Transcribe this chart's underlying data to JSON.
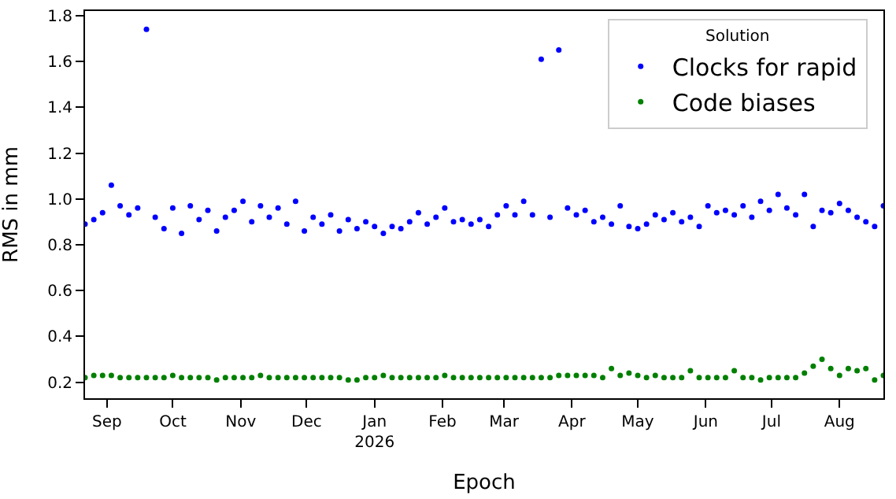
{
  "chart_data": {
    "type": "scatter",
    "xlabel": "Epoch",
    "ylabel": "RMS in mm",
    "legend_title": "Solution",
    "legend": "top right",
    "grid": false,
    "marker": "circle",
    "xlim": [
      "2025-08-22",
      "2026-08-21"
    ],
    "ylim": [
      0.13,
      1.82
    ],
    "xticks": [
      {
        "value": "2025-09-01",
        "label": "Sep"
      },
      {
        "value": "2025-10-01",
        "label": "Oct"
      },
      {
        "value": "2025-11-01",
        "label": "Nov"
      },
      {
        "value": "2025-12-01",
        "label": "Dec"
      },
      {
        "value": "2026-01-01",
        "label": "Jan\n2026"
      },
      {
        "value": "2026-02-01",
        "label": "Feb"
      },
      {
        "value": "2026-03-01",
        "label": "Mar"
      },
      {
        "value": "2026-04-01",
        "label": "Apr"
      },
      {
        "value": "2026-05-01",
        "label": "May"
      },
      {
        "value": "2026-06-01",
        "label": "Jun"
      },
      {
        "value": "2026-07-01",
        "label": "Jul"
      },
      {
        "value": "2026-08-01",
        "label": "Aug"
      }
    ],
    "yticks": [
      0.2,
      0.4,
      0.6,
      0.8,
      {
        "value": 1,
        "label": "1.0"
      },
      1.2,
      1.4,
      1.6,
      1.8
    ],
    "x": [
      "2025-08-22",
      "2025-08-26",
      "2025-08-30",
      "2025-09-03",
      "2025-09-07",
      "2025-09-11",
      "2025-09-15",
      "2025-09-19",
      "2025-09-23",
      "2025-09-27",
      "2025-10-01",
      "2025-10-05",
      "2025-10-09",
      "2025-10-13",
      "2025-10-17",
      "2025-10-21",
      "2025-10-25",
      "2025-10-29",
      "2025-11-02",
      "2025-11-06",
      "2025-11-10",
      "2025-11-14",
      "2025-11-18",
      "2025-11-22",
      "2025-11-26",
      "2025-11-30",
      "2025-12-04",
      "2025-12-08",
      "2025-12-12",
      "2025-12-16",
      "2025-12-20",
      "2025-12-24",
      "2025-12-28",
      "2026-01-01",
      "2026-01-05",
      "2026-01-09",
      "2026-01-13",
      "2026-01-17",
      "2026-01-21",
      "2026-01-25",
      "2026-01-29",
      "2026-02-02",
      "2026-02-06",
      "2026-02-10",
      "2026-02-14",
      "2026-02-18",
      "2026-02-22",
      "2026-02-26",
      "2026-03-02",
      "2026-03-06",
      "2026-03-10",
      "2026-03-14",
      "2026-03-18",
      "2026-03-22",
      "2026-03-26",
      "2026-03-30",
      "2026-04-03",
      "2026-04-07",
      "2026-04-11",
      "2026-04-15",
      "2026-04-19",
      "2026-04-23",
      "2026-04-27",
      "2026-05-01",
      "2026-05-05",
      "2026-05-09",
      "2026-05-13",
      "2026-05-17",
      "2026-05-21",
      "2026-05-25",
      "2026-05-29",
      "2026-06-02",
      "2026-06-06",
      "2026-06-10",
      "2026-06-14",
      "2026-06-18",
      "2026-06-22",
      "2026-06-26",
      "2026-06-30",
      "2026-07-04",
      "2026-07-08",
      "2026-07-12",
      "2026-07-16",
      "2026-07-20",
      "2026-07-24",
      "2026-07-28",
      "2026-08-01",
      "2026-08-05",
      "2026-08-09",
      "2026-08-13",
      "2026-08-17",
      "2026-08-21"
    ],
    "series": [
      {
        "name": "Clocks for rapid",
        "color": "#0000ff",
        "values": [
          0.89,
          0.91,
          0.94,
          1.06,
          0.97,
          0.93,
          0.96,
          1.74,
          0.92,
          0.87,
          0.96,
          0.85,
          0.97,
          0.91,
          0.95,
          0.86,
          0.92,
          0.95,
          0.99,
          0.9,
          0.97,
          0.92,
          0.96,
          0.89,
          0.99,
          0.86,
          0.92,
          0.89,
          0.93,
          0.86,
          0.91,
          0.87,
          0.9,
          0.88,
          0.85,
          0.88,
          0.87,
          0.9,
          0.94,
          0.89,
          0.92,
          0.96,
          0.9,
          0.91,
          0.89,
          0.91,
          0.88,
          0.93,
          0.97,
          0.93,
          0.99,
          0.93,
          1.61,
          0.92,
          1.65,
          0.96,
          0.93,
          0.95,
          0.9,
          0.92,
          0.89,
          0.97,
          0.88,
          0.87,
          0.89,
          0.93,
          0.91,
          0.94,
          0.9,
          0.92,
          0.88,
          0.97,
          0.94,
          0.95,
          0.93,
          0.97,
          0.92,
          0.99,
          0.95,
          1.02,
          0.96,
          0.93,
          1.02,
          0.88,
          0.95,
          0.94,
          0.98,
          0.95,
          0.92,
          0.9,
          0.88,
          0.97
        ]
      },
      {
        "name": "Code biases",
        "color": "#008000",
        "values": [
          0.22,
          0.23,
          0.23,
          0.23,
          0.22,
          0.22,
          0.22,
          0.22,
          0.22,
          0.22,
          0.23,
          0.22,
          0.22,
          0.22,
          0.22,
          0.21,
          0.22,
          0.22,
          0.22,
          0.22,
          0.23,
          0.22,
          0.22,
          0.22,
          0.22,
          0.22,
          0.22,
          0.22,
          0.22,
          0.22,
          0.21,
          0.21,
          0.22,
          0.22,
          0.23,
          0.22,
          0.22,
          0.22,
          0.22,
          0.22,
          0.22,
          0.23,
          0.22,
          0.22,
          0.22,
          0.22,
          0.22,
          0.22,
          0.22,
          0.22,
          0.22,
          0.22,
          0.22,
          0.22,
          0.23,
          0.23,
          0.23,
          0.23,
          0.23,
          0.22,
          0.26,
          0.23,
          0.24,
          0.23,
          0.22,
          0.23,
          0.22,
          0.22,
          0.22,
          0.25,
          0.22,
          0.22,
          0.22,
          0.22,
          0.25,
          0.22,
          0.22,
          0.21,
          0.22,
          0.22,
          0.22,
          0.22,
          0.24,
          0.27,
          0.3,
          0.26,
          0.23,
          0.26,
          0.25,
          0.26,
          0.21,
          0.23
        ]
      }
    ]
  }
}
